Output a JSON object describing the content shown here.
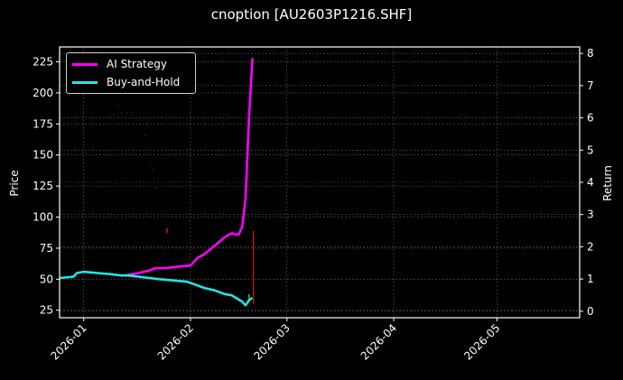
{
  "title": "cnoption [AU2603P1216.SHF]",
  "chart_data": {
    "type": "line",
    "title": "cnoption [AU2603P1216.SHF]",
    "xlabel": "",
    "ylabel": "Price",
    "y2label": "Return",
    "ylim": [
      19,
      237
    ],
    "y2lim": [
      -0.2,
      8.2
    ],
    "x_ticks": [
      "2026-01",
      "2026-02",
      "2026-03",
      "2026-04",
      "2026-05"
    ],
    "y_ticks": [
      25,
      50,
      75,
      100,
      125,
      150,
      175,
      200,
      225
    ],
    "y2_ticks": [
      0,
      1,
      2,
      3,
      4,
      5,
      6,
      7,
      8
    ],
    "grid": true,
    "legend_position": "upper left",
    "x_range": [
      "2025-12-25",
      "2026-05-25"
    ],
    "series": [
      {
        "name": "AI Strategy",
        "color": "#ff00ff",
        "axis": "price",
        "points": [
          [
            "2026-01-13",
            53
          ],
          [
            "2026-01-15",
            54
          ],
          [
            "2026-01-17",
            55
          ],
          [
            "2026-01-20",
            57
          ],
          [
            "2026-01-22",
            59
          ],
          [
            "2026-01-25",
            59
          ],
          [
            "2026-01-28",
            60
          ],
          [
            "2026-02-01",
            61
          ],
          [
            "2026-02-03",
            67
          ],
          [
            "2026-02-05",
            70
          ],
          [
            "2026-02-08",
            77
          ],
          [
            "2026-02-11",
            84
          ],
          [
            "2026-02-13",
            87
          ],
          [
            "2026-02-14",
            86
          ],
          [
            "2026-02-15",
            86
          ],
          [
            "2026-02-16",
            92
          ],
          [
            "2026-02-17",
            115
          ],
          [
            "2026-02-18",
            180
          ],
          [
            "2026-02-19",
            228
          ]
        ]
      },
      {
        "name": "Buy-and-Hold",
        "color": "#22e5e5",
        "axis": "price",
        "points": [
          [
            "2025-12-25",
            51
          ],
          [
            "2025-12-29",
            52
          ],
          [
            "2025-12-30",
            55
          ],
          [
            "2026-01-01",
            56
          ],
          [
            "2026-01-05",
            55
          ],
          [
            "2026-01-09",
            54
          ],
          [
            "2026-01-12",
            53
          ],
          [
            "2026-01-14",
            53
          ],
          [
            "2026-01-17",
            52
          ],
          [
            "2026-01-20",
            51
          ],
          [
            "2026-01-23",
            50
          ],
          [
            "2026-01-27",
            49
          ],
          [
            "2026-01-31",
            48
          ],
          [
            "2026-02-02",
            46
          ],
          [
            "2026-02-05",
            43
          ],
          [
            "2026-02-08",
            41
          ],
          [
            "2026-02-11",
            38
          ],
          [
            "2026-02-13",
            37
          ],
          [
            "2026-02-16",
            32
          ],
          [
            "2026-02-17",
            29
          ],
          [
            "2026-02-18",
            33
          ],
          [
            "2026-02-19",
            35
          ]
        ]
      }
    ],
    "annotations": [
      {
        "type": "vertical-red-line",
        "x": "2026-02-19",
        "y_from": 30,
        "y_to": 89
      },
      {
        "type": "faint-red-markers",
        "note": "scattered dim red dots between 120 and 190 near early February"
      },
      {
        "type": "small-green-marker",
        "x": "2026-02-18",
        "y": 38
      }
    ]
  },
  "legend": {
    "items": [
      {
        "label": "AI Strategy",
        "color": "#ff00ff"
      },
      {
        "label": "Buy-and-Hold",
        "color": "#22e5e5"
      }
    ]
  },
  "axes": {
    "left_label": "Price",
    "right_label": "Return",
    "left_ticks": [
      "225",
      "200",
      "175",
      "150",
      "125",
      "100",
      "75",
      "50",
      "25"
    ],
    "right_ticks": [
      "8",
      "7",
      "6",
      "5",
      "4",
      "3",
      "2",
      "1",
      "0"
    ],
    "x_ticks": [
      "2026-01",
      "2026-02",
      "2026-03",
      "2026-04",
      "2026-05"
    ]
  }
}
